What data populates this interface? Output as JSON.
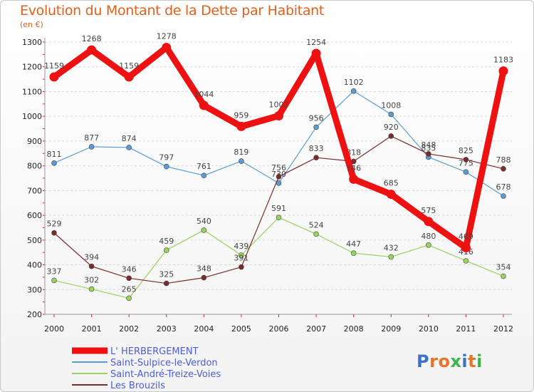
{
  "title": "Evolution du Montant de la Dette par Habitant",
  "subtitle": "(en €)",
  "logo": {
    "text": "Proxiti",
    "letter_colors": [
      "#3a73c9",
      "#e8742a",
      "#e8742a",
      "#3ab54a",
      "#3a73c9",
      "#e8742a",
      "#3ab54a"
    ]
  },
  "chart_data": {
    "type": "line",
    "title": "Evolution du Montant de la Dette par Habitant",
    "ylabel": "(en €)",
    "xlabel": "",
    "x": [
      "2000",
      "2001",
      "2002",
      "2003",
      "2004",
      "2005",
      "2006",
      "2007",
      "2008",
      "2009",
      "2010",
      "2011",
      "2012"
    ],
    "ylim": [
      200,
      1300
    ],
    "yticks": [
      "200",
      "300",
      "400",
      "500",
      "600",
      "700",
      "800",
      "900",
      "1000",
      "1100",
      "1200",
      "1300"
    ],
    "grid": "horizontal dashed",
    "legend_position": "bottom-left",
    "series": [
      {
        "name": "L' HERBERGEMENT",
        "color": "#ee1111",
        "bold": true,
        "values": [
          1159,
          1268,
          1159,
          1278,
          1044,
          959,
          1002,
          1254,
          746,
          685,
          575,
          469,
          1183
        ]
      },
      {
        "name": "Saint-Sulpice-le-Verdon",
        "color": "#5b9bd5",
        "bold": false,
        "values": [
          811,
          877,
          874,
          797,
          761,
          819,
          730,
          956,
          1102,
          1008,
          835,
          775,
          678
        ]
      },
      {
        "name": "Saint-André-Treize-Voies",
        "color": "#98d35c",
        "bold": false,
        "values": [
          337,
          302,
          265,
          459,
          540,
          439,
          591,
          524,
          447,
          432,
          480,
          416,
          354
        ]
      },
      {
        "name": "Les Brouzils",
        "color": "#7a2b2b",
        "bold": false,
        "values": [
          529,
          394,
          346,
          325,
          348,
          391,
          756,
          833,
          818,
          920,
          848,
          825,
          788
        ]
      }
    ]
  }
}
